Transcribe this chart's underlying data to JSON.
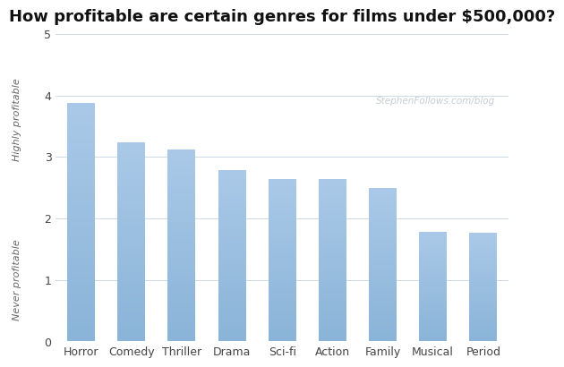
{
  "title": "How profitable are certain genres for films under $500,000?",
  "categories": [
    "Horror",
    "Comedy",
    "Thriller",
    "Drama",
    "Sci-fi",
    "Action",
    "Family",
    "Musical",
    "Period"
  ],
  "values": [
    3.87,
    3.22,
    3.1,
    2.77,
    2.63,
    2.62,
    2.48,
    1.77,
    1.76
  ],
  "bar_color_top": "#aac9e8",
  "bar_color_bottom": "#8ab4d8",
  "ylabel_top": "Highly profitable",
  "ylabel_bottom": "Never profitable",
  "ylim": [
    0,
    5
  ],
  "yticks": [
    0,
    1,
    2,
    3,
    4,
    5
  ],
  "watermark": "StephenFollows.com/blog",
  "background_color": "#ffffff",
  "grid_color": "#ccd9e8",
  "title_fontsize": 13,
  "tick_label_fontsize": 9,
  "ylabel_fontsize": 8,
  "watermark_color": "#c5cdd5",
  "bar_width": 0.55
}
